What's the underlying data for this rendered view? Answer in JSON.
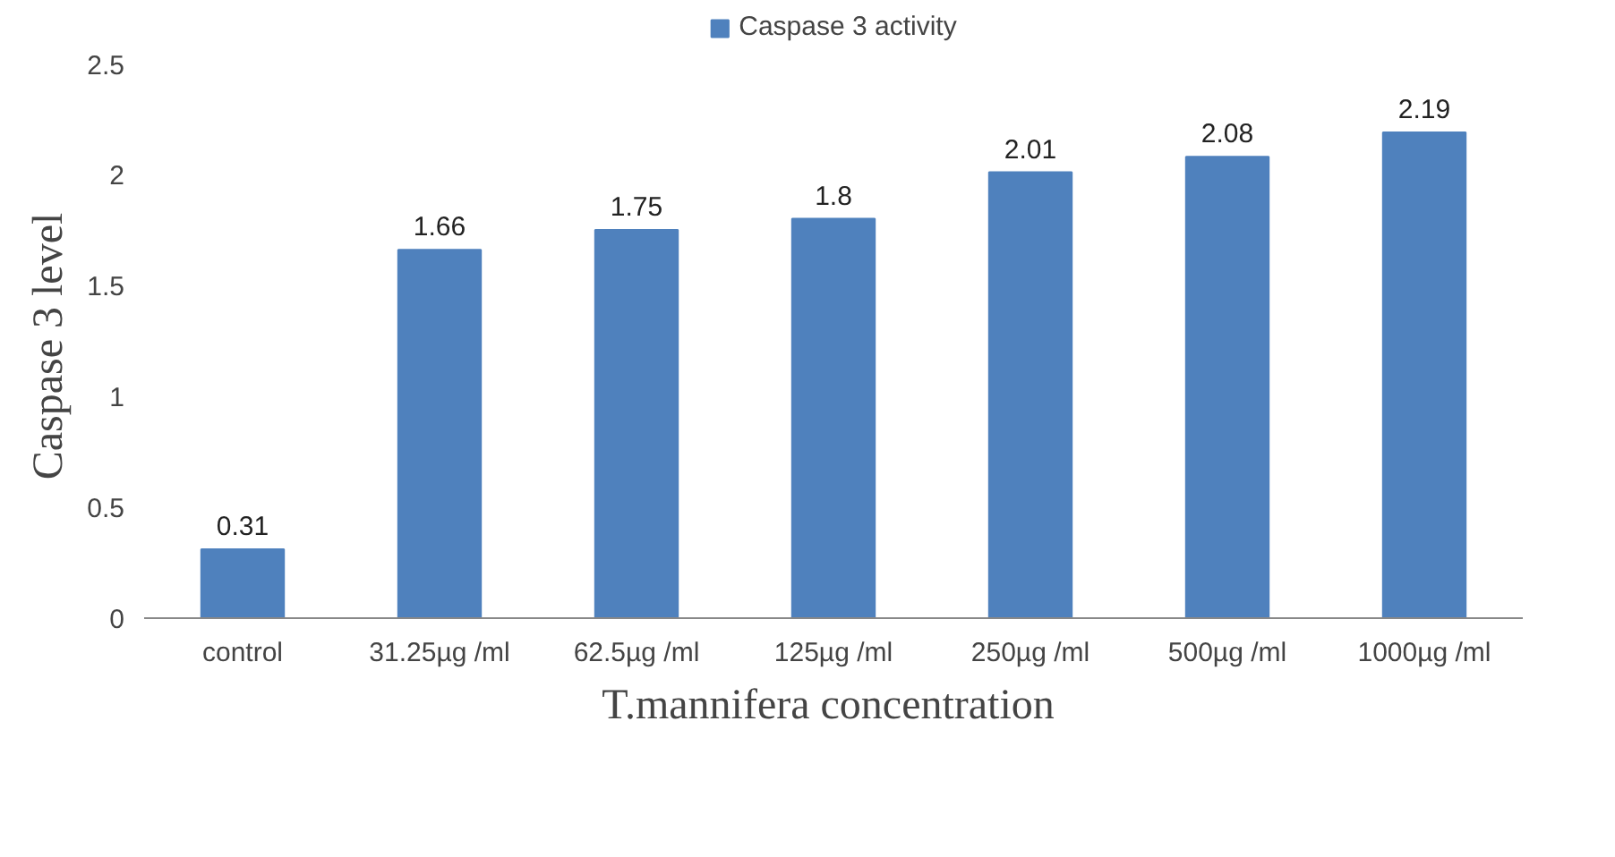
{
  "chart_data": {
    "type": "bar",
    "xlabel": "T.mannifera  concentration",
    "ylabel": "Caspase  3 level",
    "categories": [
      "control",
      "31.25µg /ml",
      "62.5µg /ml",
      "125µg /ml",
      "250µg /ml",
      "500µg /ml",
      "1000µg /ml"
    ],
    "series": [
      {
        "name": "Caspase 3 activity",
        "color": "#4f81bd",
        "values": [
          0.31,
          1.66,
          1.75,
          1.8,
          2.01,
          2.08,
          2.19
        ]
      }
    ],
    "ylim": [
      0,
      2.5
    ],
    "yticks": [
      0,
      0.5,
      1,
      1.5,
      2,
      2.5
    ],
    "grid": false,
    "legend": "top",
    "data_labels": true
  }
}
